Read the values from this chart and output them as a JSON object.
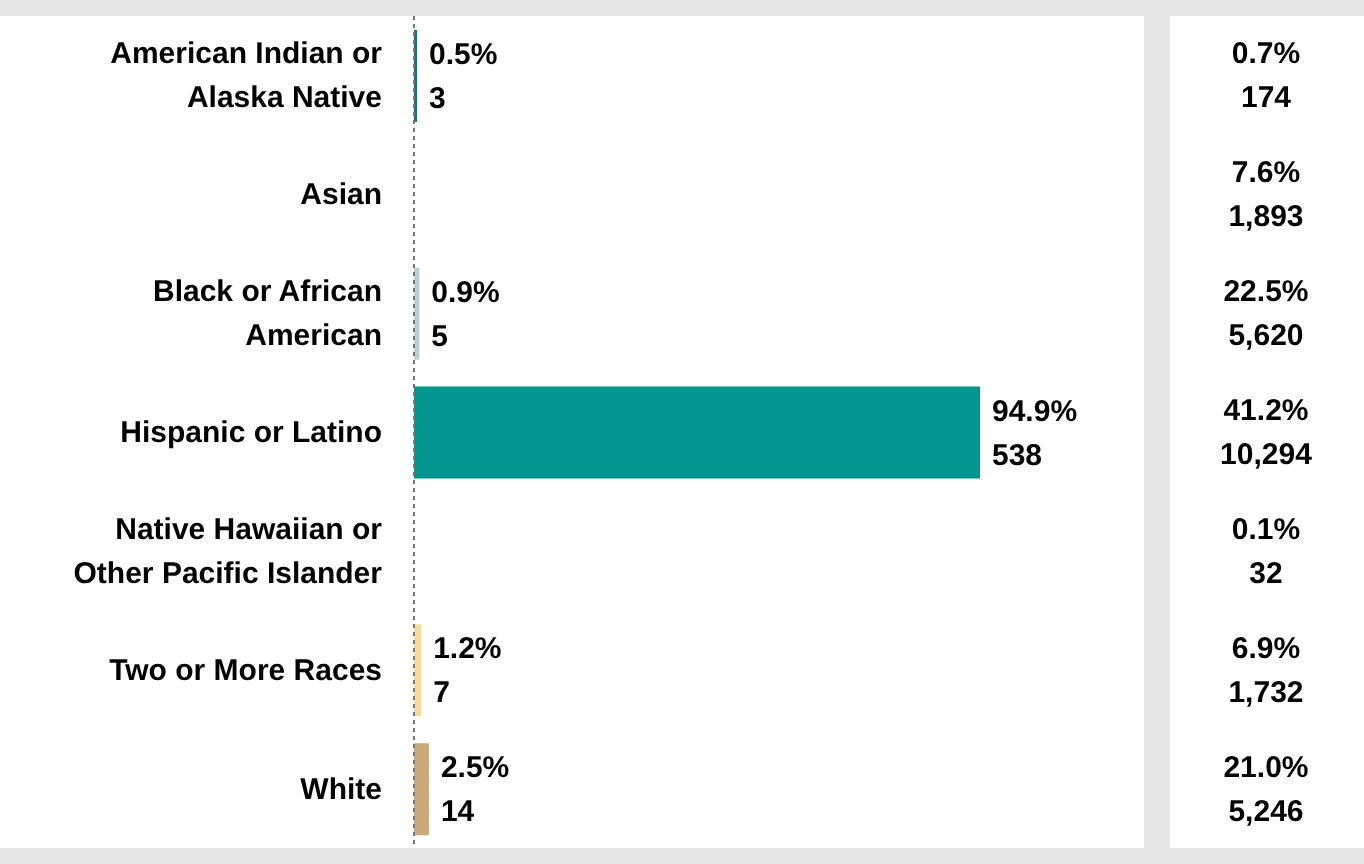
{
  "chart_data": {
    "type": "bar",
    "orientation": "horizontal",
    "tick_labels": "y",
    "categories": [
      "American Indian or Alaska Native",
      "Asian",
      "Black or African American",
      "Hispanic or Latino",
      "Native Hawaiian or Other Pacific Islander",
      "Two or More Races",
      "White"
    ],
    "series": [
      {
        "values": [
          0.5,
          null,
          0.9,
          94.9,
          null,
          1.2,
          2.5
        ],
        "colors": [
          "#1b6f80",
          null,
          "#b9cfd6",
          "#00968f",
          null,
          "#f6dc9c",
          "#c9a97a"
        ],
        "value_labels": [
          "0.5%\n3",
          null,
          "0.9%\n5",
          "94.9%\n538",
          null,
          "1.2%\n7",
          "2.5%\n14"
        ]
      }
    ],
    "annotations": [
      "0.7%\n174",
      "7.6%\n1,893",
      "22.5%\n5,620",
      "41.2%\n10,294",
      "0.1%\n32",
      "6.9%\n1,732",
      "21.0%\n5,246"
    ]
  }
}
